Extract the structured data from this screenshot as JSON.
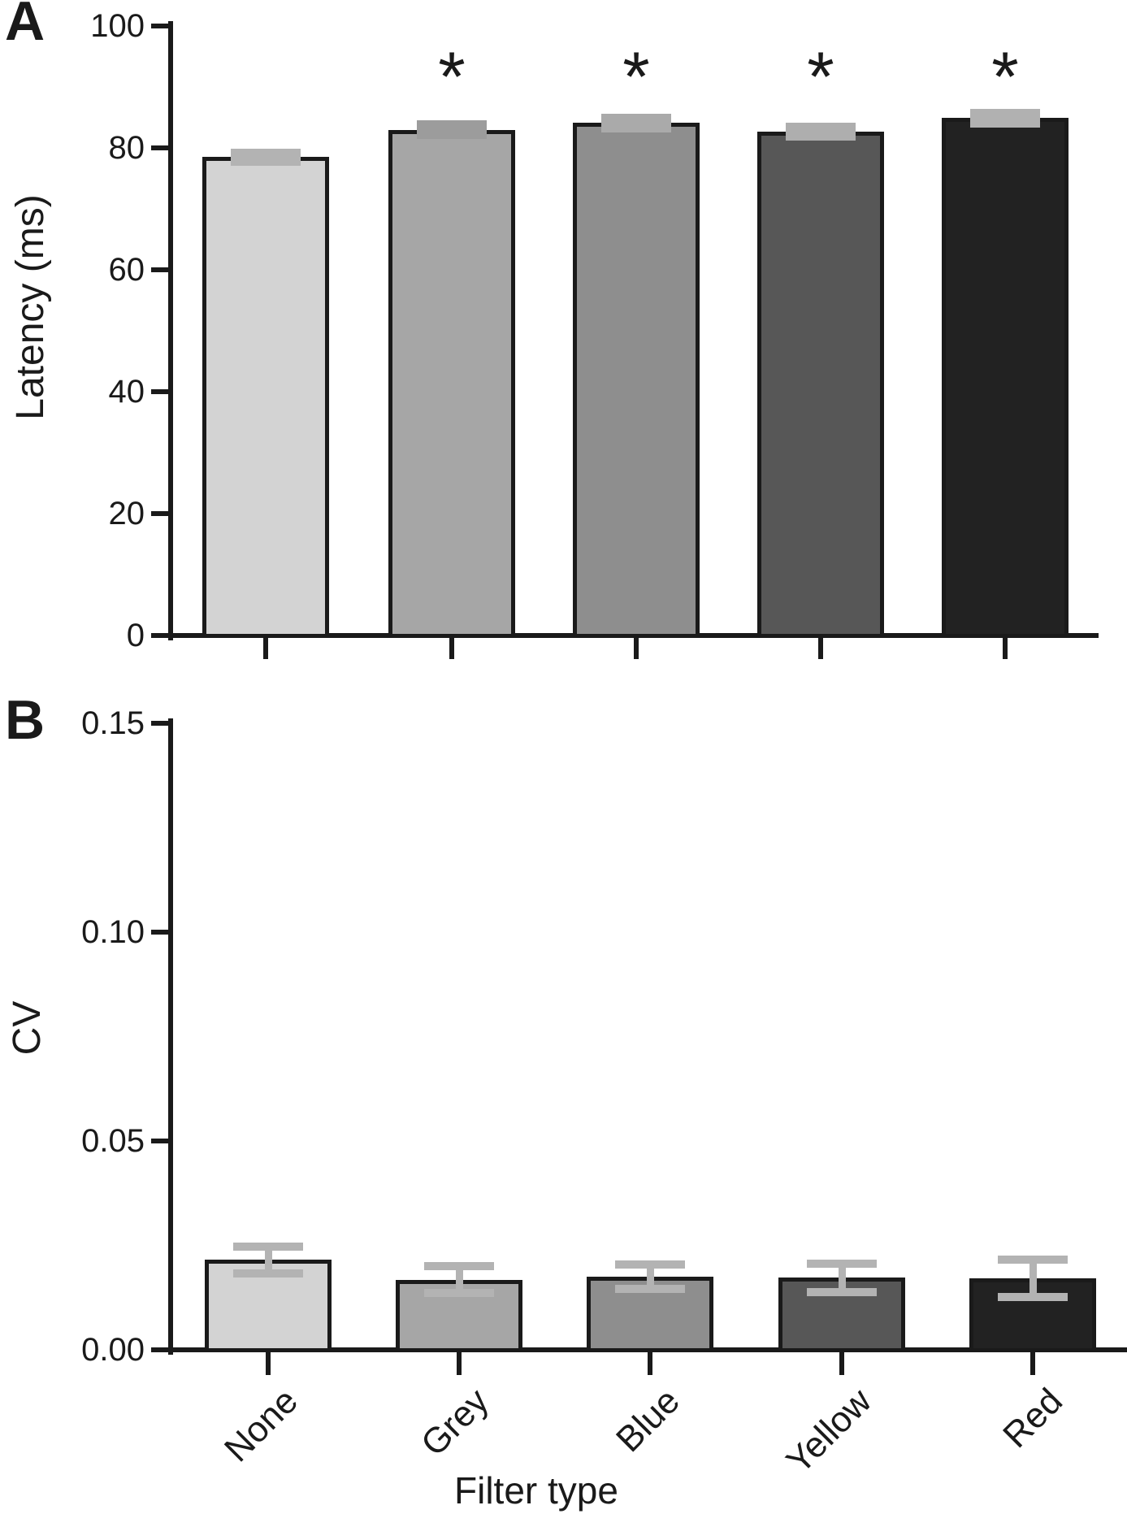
{
  "figure": {
    "panels": [
      {
        "letter": "A",
        "ylabel": "Latency (ms)"
      },
      {
        "letter": "B",
        "ylabel": "CV",
        "xlabel": "Filter type"
      }
    ],
    "categories": [
      "None",
      "Grey",
      "Blue",
      "Yellow",
      "Red"
    ],
    "bar_fill_colors": [
      "#d3d3d3",
      "#a6a6a6",
      "#8e8e8e",
      "#575757",
      "#222222"
    ],
    "bar_outline_color": "#1a1a1a",
    "error_band_colors_panel_a": [
      "#b3b3b3",
      "#9c9c9c",
      "#aaaaaa",
      "#aeaeae",
      "#b1b1b1"
    ],
    "error_bar_color_panel_b": "#b3b3b3",
    "significance_marker": "*"
  },
  "chart_data": [
    {
      "id": "A",
      "type": "bar",
      "ylabel": "Latency (ms)",
      "categories": [
        "None",
        "Grey",
        "Blue",
        "Yellow",
        "Red"
      ],
      "values": [
        78.5,
        83.0,
        84.1,
        82.7,
        84.9
      ],
      "sem": [
        1.4,
        1.5,
        1.5,
        1.5,
        1.5
      ],
      "significance": [
        false,
        true,
        true,
        true,
        true
      ],
      "ylim": [
        0,
        100
      ],
      "yticks": [
        0,
        20,
        40,
        60,
        80,
        100
      ],
      "ytick_labels": [
        "0",
        "20",
        "40",
        "60",
        "80",
        "100"
      ],
      "error_style": "shaded band ± SEM overlapping bar top",
      "grid": false,
      "legend": false
    },
    {
      "id": "B",
      "type": "bar",
      "ylabel": "CV",
      "xlabel": "Filter type",
      "categories": [
        "None",
        "Grey",
        "Blue",
        "Yellow",
        "Red"
      ],
      "values": [
        0.0215,
        0.0168,
        0.0175,
        0.0173,
        0.0171
      ],
      "sem": [
        0.0033,
        0.0032,
        0.003,
        0.0034,
        0.0045
      ],
      "significance": [
        false,
        false,
        false,
        false,
        false
      ],
      "ylim": [
        0,
        0.15
      ],
      "yticks": [
        0,
        0.05,
        0.1,
        0.15
      ],
      "ytick_labels": [
        "0.00",
        "0.05",
        "0.10",
        "0.15"
      ],
      "error_style": "capped error bars ± SEM centered on bar top",
      "grid": false,
      "legend": false
    }
  ]
}
